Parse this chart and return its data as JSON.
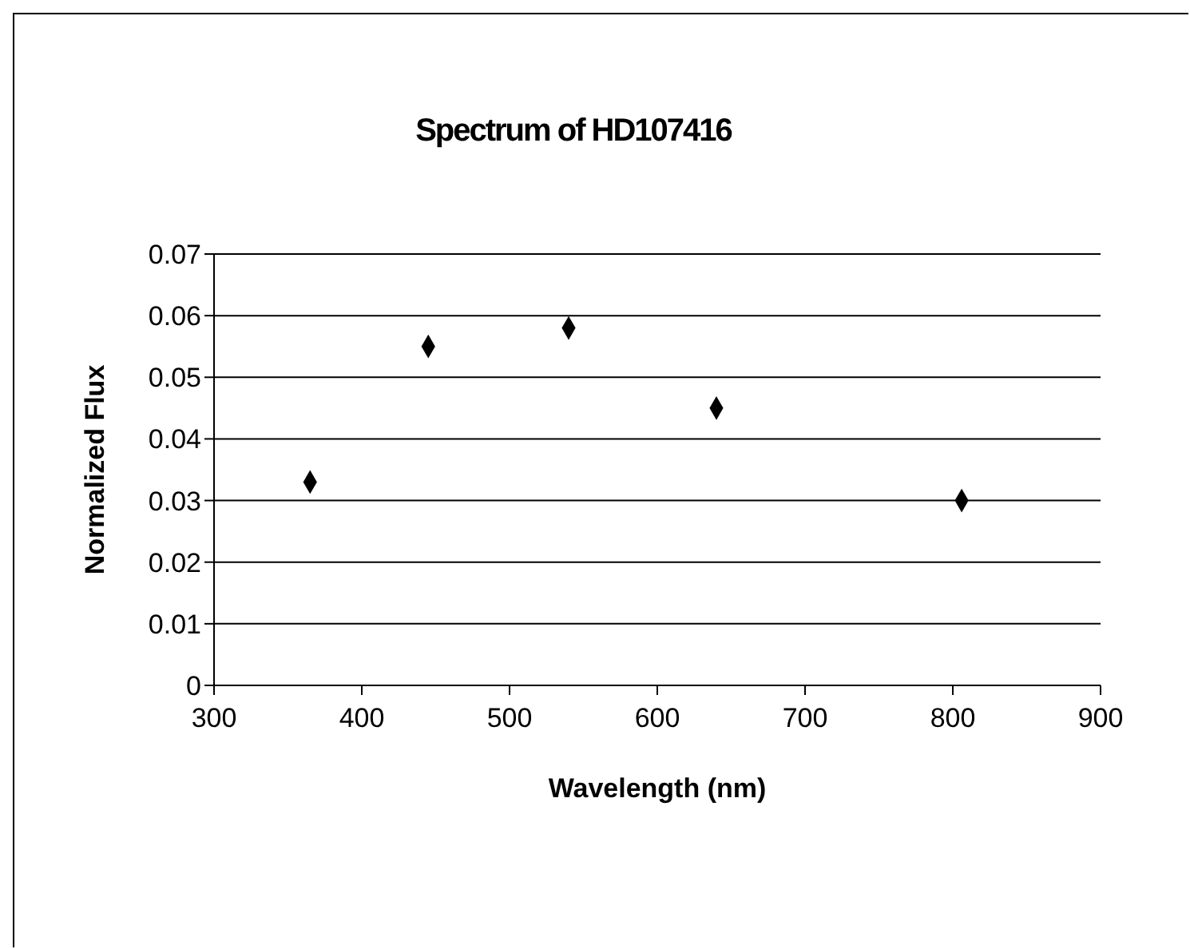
{
  "chart_data": {
    "type": "scatter",
    "title": "Spectrum of HD107416",
    "xlabel": "Wavelength (nm)",
    "ylabel": "Normalized Flux",
    "x": [
      365,
      445,
      540,
      640,
      806
    ],
    "series": [
      {
        "color": "#000000",
        "values": [
          0.033,
          0.055,
          0.058,
          0.045,
          0.03
        ]
      }
    ],
    "xlim": [
      300,
      900
    ],
    "xticks": [
      300,
      400,
      500,
      600,
      700,
      800,
      900
    ],
    "ylim": [
      0,
      0.07
    ],
    "yticks": [
      0,
      0.01,
      0.02,
      0.03,
      0.04,
      0.05,
      0.06,
      0.07
    ],
    "grid": "y",
    "marker": "diamond",
    "legend": false
  }
}
